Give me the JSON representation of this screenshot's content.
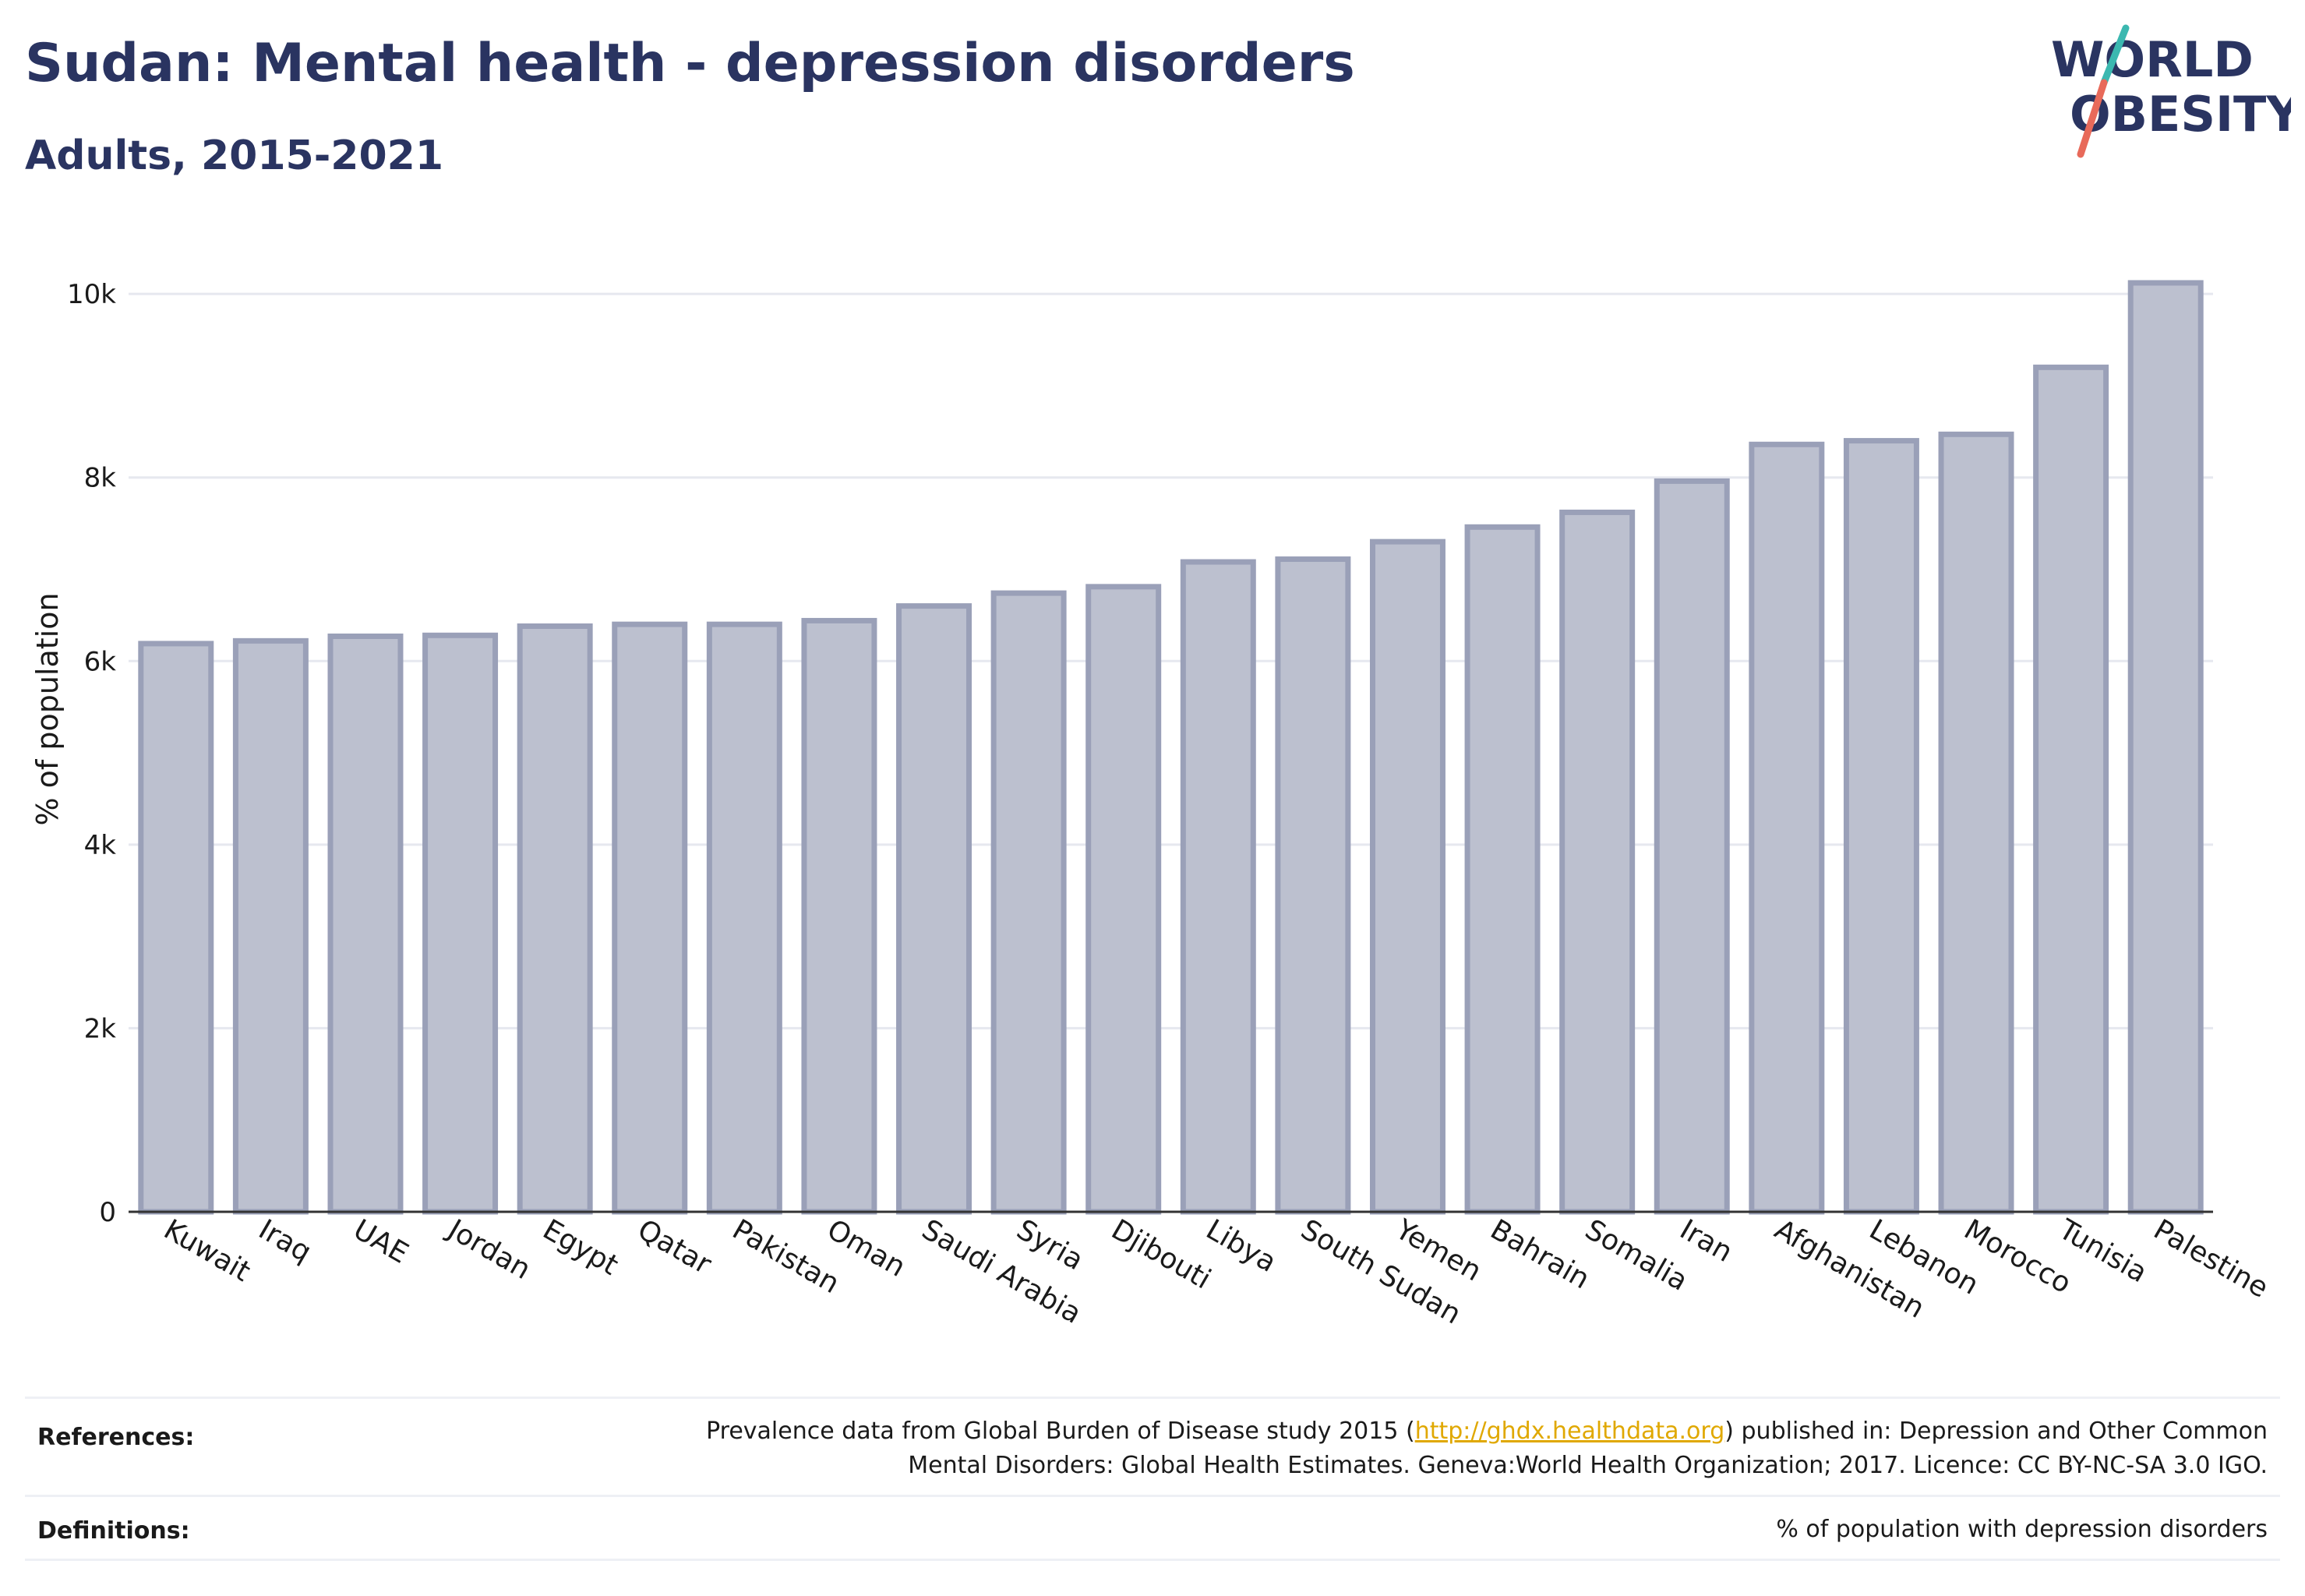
{
  "header": {
    "title": "Sudan: Mental health - depression disorders",
    "subtitle": "Adults, 2015-2021"
  },
  "logo": {
    "line1": "WORLD",
    "line2": "OBESITY",
    "text_color": "#2a3461",
    "slash_colors": [
      "#3bb8b0",
      "#e86a5a"
    ]
  },
  "colors": {
    "bar_fill": "#bcc0cf",
    "bar_stroke": "#9aa0b8",
    "grid": "#e6e8ef",
    "axis": "#333333"
  },
  "chart_data": {
    "type": "bar",
    "ylabel": "% of population",
    "xlabel": "",
    "ylim": [
      0,
      10400
    ],
    "yticks": [
      0,
      2000,
      4000,
      6000,
      8000,
      10000
    ],
    "ytick_labels": [
      "0",
      "2k",
      "4k",
      "6k",
      "8k",
      "10k"
    ],
    "grid": true,
    "categories": [
      "Kuwait",
      "Iraq",
      "UAE",
      "Jordan",
      "Egypt",
      "Qatar",
      "Pakistan",
      "Oman",
      "Saudi Arabia",
      "Syria",
      "Djibouti",
      "Libya",
      "South Sudan",
      "Yemen",
      "Bahrain",
      "Somalia",
      "Iran",
      "Afghanistan",
      "Lebanon",
      "Morocco",
      "Tunisia",
      "Palestine"
    ],
    "values": [
      6190,
      6220,
      6270,
      6280,
      6380,
      6400,
      6400,
      6440,
      6600,
      6740,
      6810,
      7080,
      7110,
      7300,
      7460,
      7620,
      7960,
      8360,
      8400,
      8470,
      9200,
      10120
    ]
  },
  "footer": {
    "references_label": "References:",
    "references_line1_pre": "Prevalence data from Global Burden of Disease study 2015 (",
    "references_link": "http://ghdx.healthdata.org",
    "references_line1_post": ") published in: Depression and Other Common",
    "references_line2": "Mental Disorders: Global Health Estimates. Geneva:World Health Organization; 2017. Licence: CC BY-NC-SA 3.0 IGO.",
    "definitions_label": "Definitions:",
    "definitions_text": "% of population with depression disorders"
  }
}
